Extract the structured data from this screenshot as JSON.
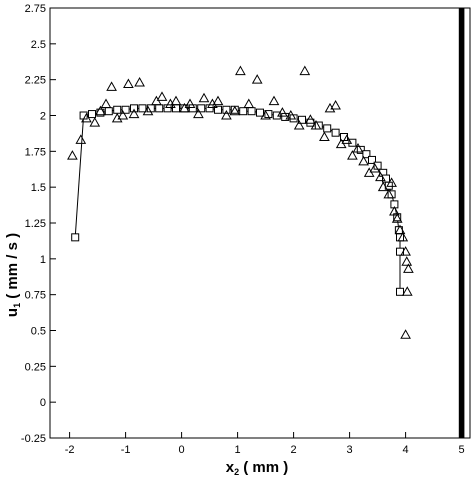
{
  "chart_data": {
    "type": "scatter",
    "title": "",
    "xlabel": {
      "main": "x",
      "sub": "2",
      "rest": " ( mm )"
    },
    "ylabel": {
      "main": "u",
      "sub": "1",
      "rest": " ( mm / s )"
    },
    "xlim": [
      -2.35,
      5.15
    ],
    "ylim": [
      -0.25,
      2.75
    ],
    "xticks": [
      -2,
      -1,
      0,
      1,
      2,
      3,
      4,
      5
    ],
    "xtick_labels": [
      "-2",
      "-1",
      "0",
      "1",
      "2",
      "3",
      "4",
      "5"
    ],
    "yticks": [
      -0.25,
      0,
      0.25,
      0.5,
      0.75,
      1,
      1.25,
      1.5,
      1.75,
      2,
      2.25,
      2.5,
      2.75
    ],
    "ytick_labels": [
      "-0.25",
      "0",
      "0.25",
      "0.5",
      "0.75",
      "1",
      "1.25",
      "1.5",
      "1.75",
      "2",
      "2.25",
      "2.5",
      "2.75"
    ],
    "grid": false,
    "wall": {
      "x_from": 4.95,
      "x_to": 5.05,
      "color": "#000000"
    },
    "series": [
      {
        "marker": "square",
        "line": true,
        "x": [
          -1.9,
          -1.75,
          -1.6,
          -1.45,
          -1.3,
          -1.15,
          -1.0,
          -0.85,
          -0.7,
          -0.55,
          -0.4,
          -0.25,
          -0.1,
          0.05,
          0.2,
          0.35,
          0.5,
          0.65,
          0.8,
          0.95,
          1.1,
          1.25,
          1.4,
          1.55,
          1.7,
          1.85,
          2.0,
          2.15,
          2.3,
          2.45,
          2.6,
          2.75,
          2.9,
          3.05,
          3.2,
          3.3,
          3.4,
          3.5,
          3.6,
          3.65,
          3.7,
          3.75,
          3.8,
          3.85,
          3.88,
          3.9,
          3.9,
          3.9
        ],
        "y": [
          1.15,
          2.0,
          2.01,
          2.02,
          2.03,
          2.04,
          2.04,
          2.05,
          2.05,
          2.05,
          2.05,
          2.05,
          2.05,
          2.05,
          2.05,
          2.05,
          2.05,
          2.04,
          2.04,
          2.04,
          2.03,
          2.03,
          2.02,
          2.01,
          2.0,
          1.99,
          1.98,
          1.97,
          1.95,
          1.93,
          1.91,
          1.88,
          1.85,
          1.81,
          1.76,
          1.73,
          1.69,
          1.65,
          1.6,
          1.56,
          1.51,
          1.45,
          1.38,
          1.29,
          1.2,
          1.15,
          1.05,
          0.77
        ]
      },
      {
        "marker": "triangle",
        "line": false,
        "x": [
          -1.95,
          -1.8,
          -1.7,
          -1.55,
          -1.45,
          -1.35,
          -1.25,
          -1.15,
          -1.05,
          -0.95,
          -0.85,
          -0.75,
          -0.6,
          -0.45,
          -0.35,
          -0.2,
          -0.1,
          0.05,
          0.15,
          0.3,
          0.4,
          0.55,
          0.65,
          0.8,
          0.95,
          1.05,
          1.2,
          1.35,
          1.5,
          1.65,
          1.8,
          1.95,
          2.1,
          2.2,
          2.3,
          2.4,
          2.55,
          2.65,
          2.75,
          2.85,
          2.95,
          3.05,
          3.15,
          3.25,
          3.35,
          3.45,
          3.55,
          3.6,
          3.7,
          3.75,
          3.8,
          3.85,
          3.9,
          3.95,
          4.0,
          4.02,
          4.05,
          4.03,
          4.0
        ],
        "y": [
          1.72,
          1.83,
          1.98,
          1.95,
          2.03,
          2.08,
          2.2,
          1.98,
          2.0,
          2.22,
          2.01,
          2.23,
          2.03,
          2.1,
          2.13,
          2.08,
          2.1,
          2.05,
          2.08,
          2.01,
          2.12,
          2.08,
          2.1,
          2.0,
          2.03,
          2.31,
          2.08,
          2.25,
          2.0,
          2.1,
          2.02,
          2.0,
          1.93,
          2.31,
          1.97,
          1.93,
          1.85,
          2.05,
          2.07,
          1.8,
          1.83,
          1.72,
          1.77,
          1.68,
          1.6,
          1.63,
          1.57,
          1.5,
          1.45,
          1.53,
          1.33,
          1.28,
          1.2,
          1.15,
          1.05,
          0.98,
          0.93,
          0.77,
          0.47
        ]
      }
    ]
  }
}
